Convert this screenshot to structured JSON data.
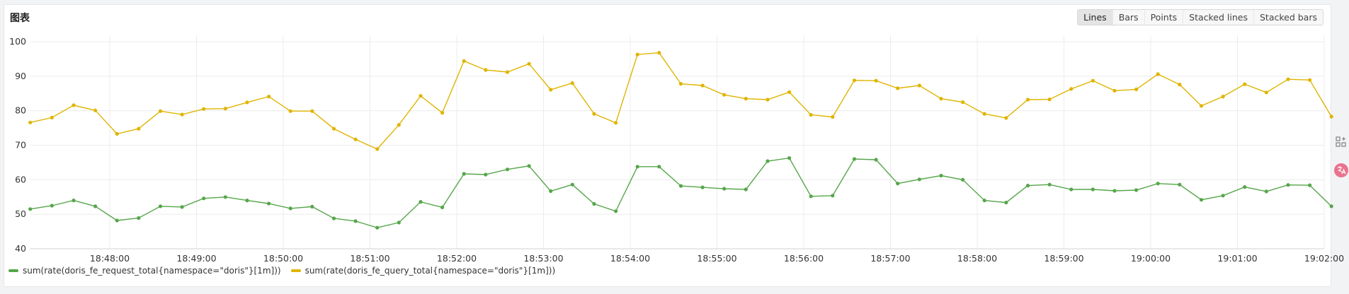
{
  "panel": {
    "title": "图表"
  },
  "view_tabs": [
    "Lines",
    "Bars",
    "Points",
    "Stacked lines",
    "Stacked bars"
  ],
  "active_tab": "Lines",
  "side_tools": {
    "top_icon": "apps-add-icon",
    "bottom_icon": "translate-icon"
  },
  "chart_data": {
    "type": "line",
    "title": "",
    "xlabel": "",
    "ylabel": "",
    "ylim": [
      40,
      100
    ],
    "yticks": [
      40,
      50,
      60,
      70,
      80,
      90,
      100
    ],
    "xticks": [
      "18:48:00",
      "18:49:00",
      "18:50:00",
      "18:51:00",
      "18:52:00",
      "18:53:00",
      "18:54:00",
      "18:55:00",
      "18:56:00",
      "18:57:00",
      "18:58:00",
      "18:59:00",
      "19:00:00",
      "19:01:00",
      "19:02:00"
    ],
    "x_range": [
      "18:47:05",
      "18:52:05"
    ],
    "x_interval_seconds": 15,
    "grid": true,
    "legend_position": "bottom-left",
    "series": [
      {
        "name": "sum(rate(doris_fe_request_total{namespace=\"doris\"}[1m]))",
        "color": "#56a64b",
        "values": [
          51.5,
          52.5,
          54.0,
          52.3,
          48.2,
          48.9,
          52.3,
          52.1,
          54.6,
          55.0,
          54.0,
          53.1,
          51.7,
          52.2,
          48.8,
          48.0,
          46.1,
          47.6,
          53.6,
          52.0,
          61.7,
          61.5,
          63.0,
          64.0,
          56.7,
          58.6,
          53.0,
          50.9,
          63.8,
          63.8,
          58.2,
          57.8,
          57.4,
          57.2,
          65.4,
          66.3,
          55.2,
          55.4,
          66.0,
          65.8,
          58.9,
          60.1,
          61.2,
          60.0,
          54.0,
          53.4,
          58.3,
          58.6,
          57.2,
          57.2,
          56.8,
          57.0,
          58.9,
          58.6,
          54.2,
          55.4,
          57.9,
          56.6,
          58.5,
          58.4,
          52.3
        ]
      },
      {
        "name": "sum(rate(doris_fe_query_total{namespace=\"doris\"}[1m]))",
        "color": "#e0b400",
        "values": [
          76.6,
          78.0,
          81.6,
          80.1,
          73.3,
          74.8,
          79.9,
          78.9,
          80.5,
          80.6,
          82.4,
          84.1,
          79.9,
          79.9,
          74.8,
          71.7,
          68.9,
          75.9,
          84.3,
          79.4,
          94.4,
          91.8,
          91.2,
          93.6,
          86.1,
          88.0,
          79.1,
          76.5,
          96.3,
          96.8,
          87.8,
          87.3,
          84.6,
          83.5,
          83.2,
          85.4,
          78.8,
          78.2,
          88.8,
          88.7,
          86.5,
          87.3,
          83.5,
          82.5,
          79.1,
          77.9,
          83.2,
          83.3,
          86.3,
          88.7,
          85.8,
          86.2,
          90.6,
          87.6,
          81.4,
          84.1,
          87.7,
          85.3,
          89.1,
          88.9,
          78.3
        ]
      }
    ]
  }
}
